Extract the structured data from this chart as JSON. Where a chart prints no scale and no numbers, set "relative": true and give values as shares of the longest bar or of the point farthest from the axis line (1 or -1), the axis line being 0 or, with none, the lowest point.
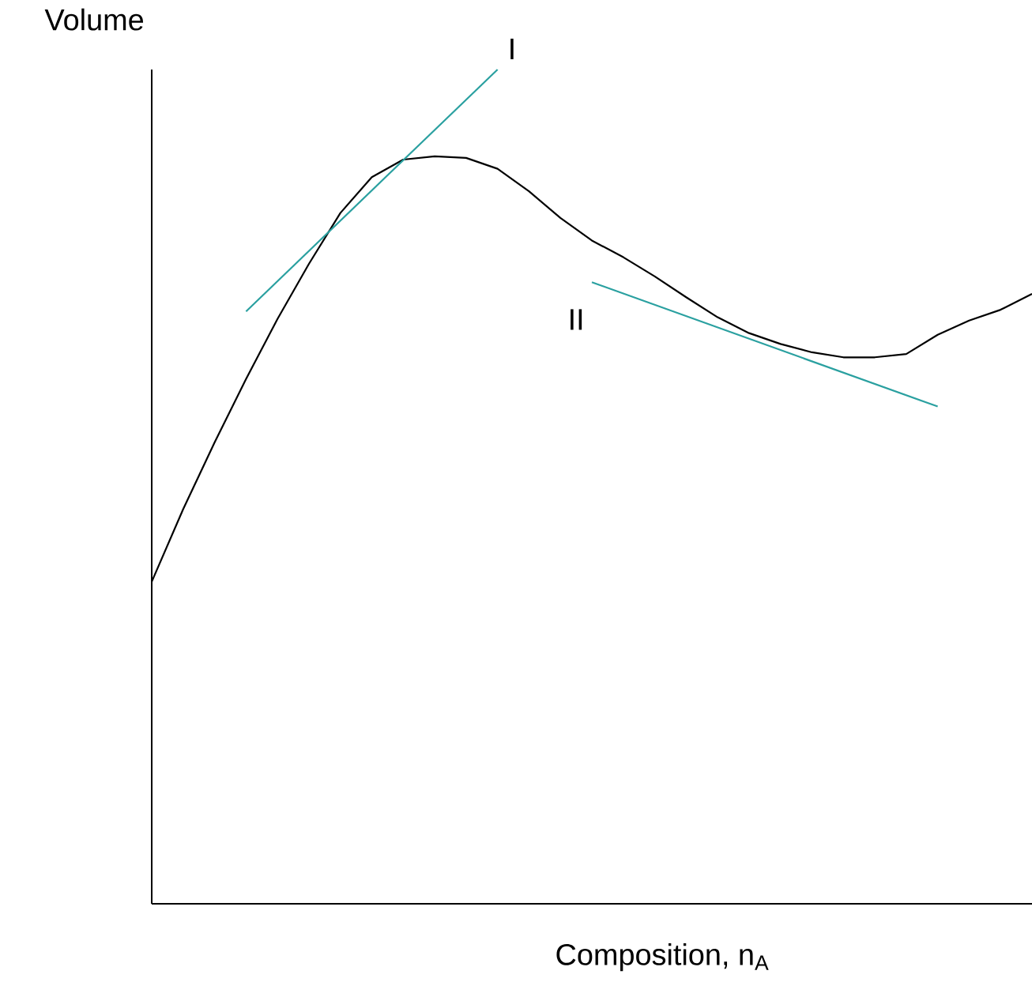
{
  "chart_data": {
    "type": "line",
    "relative": true,
    "xlabel": "Composition, n$_{A}$",
    "ylabel": "Volume",
    "marker": "none",
    "line_style": "solid",
    "categories": [
      null,
      null,
      null,
      null,
      null,
      null,
      null,
      null,
      null,
      null,
      null,
      null,
      null,
      null,
      null,
      null,
      null,
      null,
      null,
      null,
      null,
      null,
      null,
      null,
      null,
      null,
      null,
      null,
      null
    ],
    "series": [
      {
        "color": "#000000",
        "values": [
          0.386,
          0.473,
          0.553,
          0.629,
          0.701,
          0.767,
          0.828,
          0.871,
          0.892,
          0.896,
          0.894,
          0.881,
          0.854,
          0.822,
          0.795,
          0.775,
          0.752,
          0.727,
          0.703,
          0.684,
          0.671,
          0.661,
          0.655,
          0.655,
          0.659,
          0.682,
          0.699,
          0.712,
          0.731
        ]
      },
      {
        "name": "I",
        "color": "#2aa0a0",
        "values": [
          null,
          null,
          null,
          0.71,
          null,
          null,
          null,
          null,
          null,
          null,
          null,
          1,
          null,
          null,
          null,
          null,
          null,
          null,
          null,
          null,
          null,
          null,
          null,
          null,
          null,
          null,
          null,
          null,
          null
        ]
      },
      {
        "name": "II",
        "color": "#2aa0a0",
        "values": [
          null,
          null,
          null,
          null,
          null,
          null,
          null,
          null,
          null,
          null,
          null,
          null,
          null,
          null,
          0.745,
          null,
          null,
          null,
          null,
          null,
          null,
          null,
          null,
          null,
          null,
          0.596,
          null,
          null,
          null
        ]
      }
    ]
  }
}
